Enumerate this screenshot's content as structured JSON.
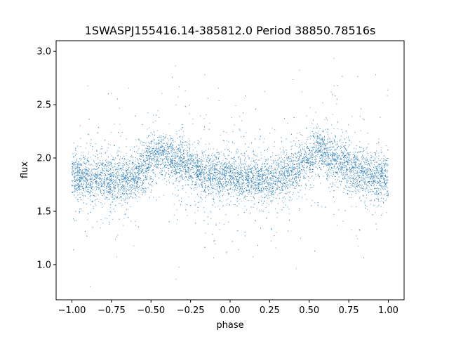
{
  "chart_data": {
    "type": "scatter",
    "title": "1SWASPJ155416.14-385812.0 Period 38850.78516s",
    "xlabel": "phase",
    "ylabel": "flux",
    "xlim": [
      -1.1,
      1.1
    ],
    "ylim": [
      0.67,
      3.1
    ],
    "xticks": [
      -1.0,
      -0.75,
      -0.5,
      -0.25,
      0.0,
      0.25,
      0.5,
      0.75,
      1.0
    ],
    "xtick_labels": [
      "−1.00",
      "−0.75",
      "−0.50",
      "−0.25",
      "0.00",
      "0.25",
      "0.50",
      "0.75",
      "1.00"
    ],
    "yticks": [
      1.0,
      1.5,
      2.0,
      2.5,
      3.0
    ],
    "ytick_labels": [
      "1.0",
      "1.5",
      "2.0",
      "2.5",
      "3.0"
    ],
    "grid": false,
    "marker_color": "#1f77b4",
    "series": [
      {
        "x": [
          -1.0,
          -0.9,
          -0.8,
          -0.7,
          -0.6,
          -0.5,
          -0.45,
          -0.4,
          -0.3,
          -0.2,
          -0.1,
          0.0,
          0.1,
          0.2,
          0.3,
          0.4,
          0.5,
          0.55,
          0.6,
          0.7,
          0.8,
          0.9,
          1.0
        ],
        "y": [
          1.83,
          1.82,
          1.8,
          1.79,
          1.83,
          1.97,
          2.05,
          2.02,
          1.95,
          1.87,
          1.83,
          1.82,
          1.8,
          1.79,
          1.82,
          1.88,
          1.98,
          2.07,
          2.02,
          1.95,
          1.88,
          1.84,
          1.83
        ]
      }
    ]
  }
}
